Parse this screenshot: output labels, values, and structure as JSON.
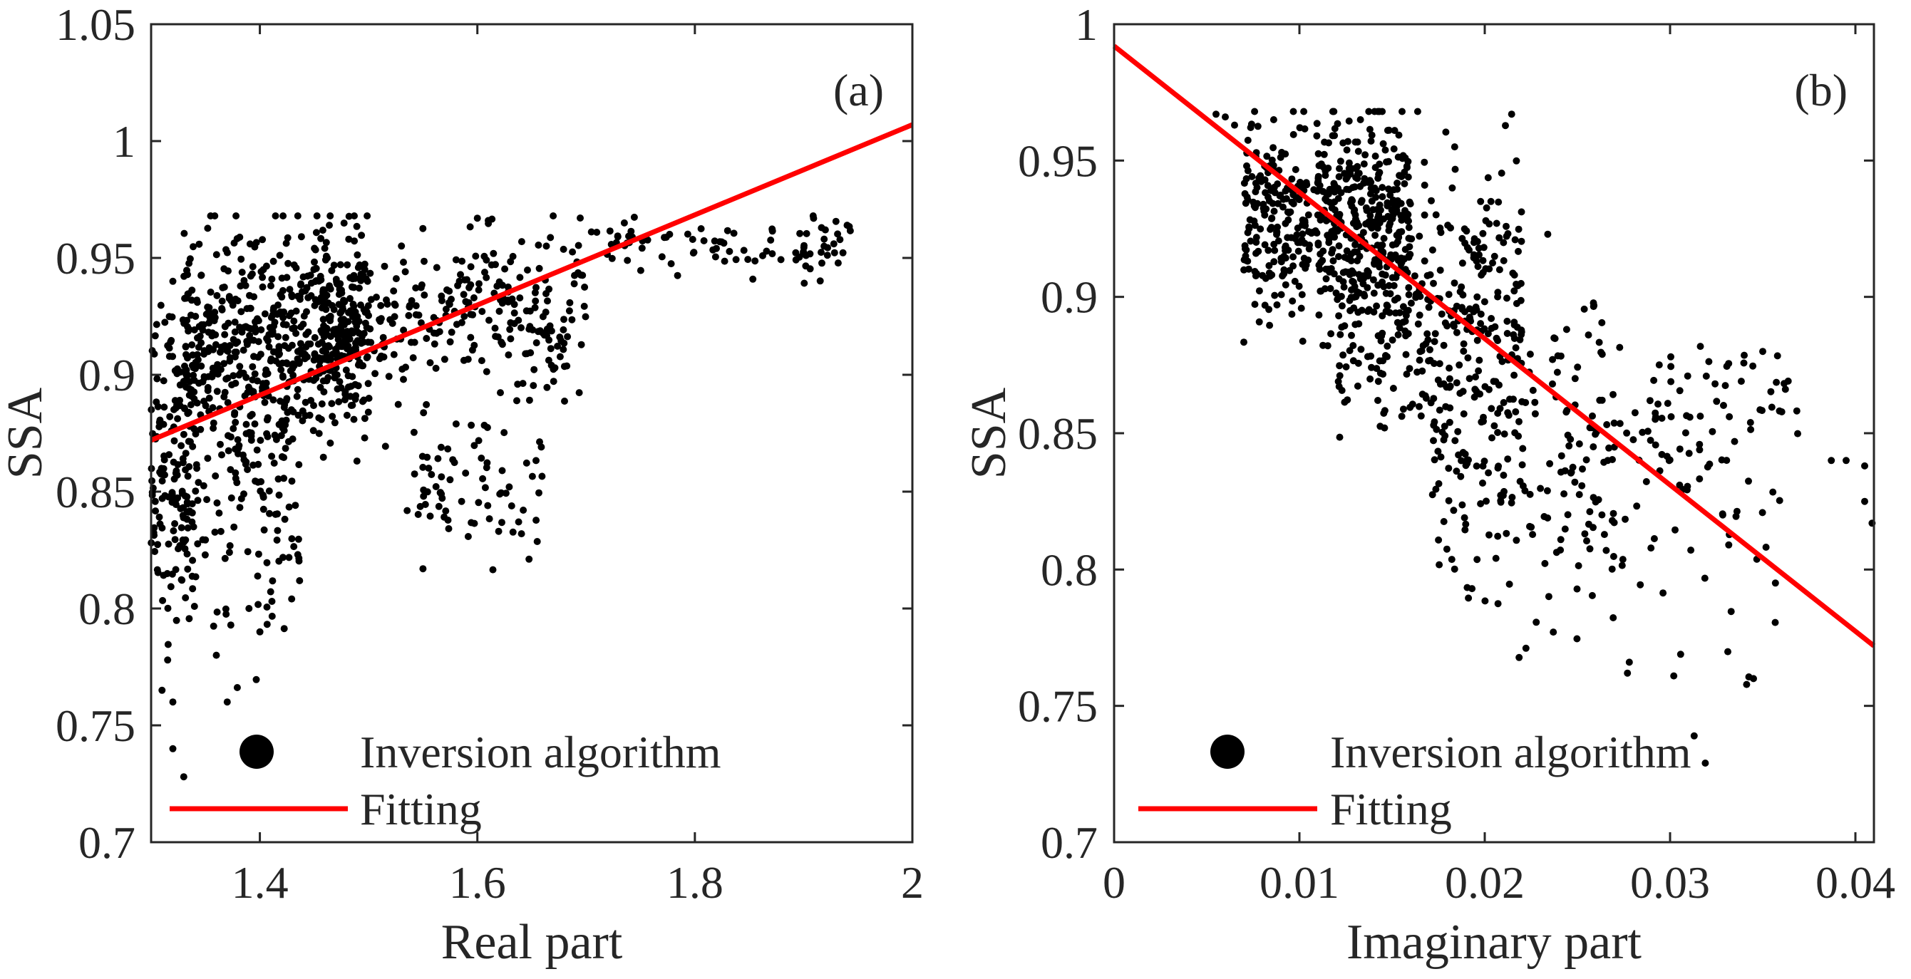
{
  "chart_data": [
    {
      "type": "scatter",
      "panel_label": "(a)",
      "xlabel": "Real part",
      "ylabel": "SSA",
      "xlim": [
        1.3,
        2.0
      ],
      "ylim": [
        0.7,
        1.05
      ],
      "xticks": [
        1.4,
        1.6,
        1.8,
        2.0
      ],
      "xtick_labels": [
        "1.4",
        "1.6",
        "1.8",
        "2"
      ],
      "yticks": [
        0.7,
        0.75,
        0.8,
        0.85,
        0.9,
        0.95,
        1.0,
        1.05
      ],
      "ytick_labels": [
        "0.7",
        "0.75",
        "0.8",
        "0.85",
        "0.9",
        "0.95",
        "1",
        "1.05"
      ],
      "legend_position": "bottom-left",
      "series": [
        {
          "name": "Inversion algorithm",
          "kind": "scatter",
          "color": "#000000",
          "clusters": [
            {
              "count": 560,
              "x_range": [
                1.33,
                1.5
              ],
              "y_center": 0.915,
              "y_spread": 0.022
            },
            {
              "count": 320,
              "x_range": [
                1.45,
                1.7
              ],
              "y_center": 0.925,
              "y_spread": 0.018
            },
            {
              "count": 170,
              "x_range": [
                1.3,
                1.34
              ],
              "y_center": 0.86,
              "y_spread": 0.035
            },
            {
              "count": 130,
              "x_range": [
                1.34,
                1.44
              ],
              "y_center": 0.85,
              "y_spread": 0.03
            },
            {
              "count": 75,
              "x_range": [
                1.53,
                1.66
              ],
              "y_center": 0.85,
              "y_spread": 0.014
            },
            {
              "count": 90,
              "x_range": [
                1.7,
                1.95
              ],
              "y_center": 0.955,
              "y_spread": 0.007
            }
          ],
          "points": [
            {
              "x": 1.31,
              "y": 0.765
            },
            {
              "x": 1.32,
              "y": 0.76
            },
            {
              "x": 1.32,
              "y": 0.74
            },
            {
              "x": 1.33,
              "y": 0.728
            },
            {
              "x": 1.36,
              "y": 0.78
            },
            {
              "x": 1.37,
              "y": 0.76
            },
            {
              "x": 1.39,
              "y": 0.8
            },
            {
              "x": 1.4,
              "y": 0.79
            },
            {
              "x": 1.55,
              "y": 0.817
            },
            {
              "x": 1.32,
              "y": 0.94
            },
            {
              "x": 1.6,
              "y": 0.967
            },
            {
              "x": 1.61,
              "y": 0.966
            },
            {
              "x": 1.92,
              "y": 0.962
            },
            {
              "x": 1.94,
              "y": 0.964
            }
          ]
        },
        {
          "name": "Fitting",
          "kind": "line",
          "color": "#ff0000",
          "x": [
            1.3,
            2.0
          ],
          "y": [
            0.872,
            1.007
          ]
        }
      ]
    },
    {
      "type": "scatter",
      "panel_label": "(b)",
      "xlabel": "Imaginary part",
      "ylabel": "SSA",
      "xlim": [
        0,
        0.041
      ],
      "ylim": [
        0.7,
        1.0
      ],
      "xticks": [
        0,
        0.01,
        0.02,
        0.03,
        0.04
      ],
      "xtick_labels": [
        "0",
        "0.01",
        "0.02",
        "0.03",
        "0.04"
      ],
      "yticks": [
        0.7,
        0.75,
        0.8,
        0.85,
        0.9,
        0.95,
        1.0
      ],
      "ytick_labels": [
        "0.7",
        "0.75",
        "0.8",
        "0.85",
        "0.9",
        "0.95",
        "1"
      ],
      "legend_position": "bottom-left",
      "series": [
        {
          "name": "Inversion algorithm",
          "kind": "scatter",
          "color": "#000000",
          "clusters": [
            {
              "count": 520,
              "x_range": [
                0.007,
                0.016
              ],
              "y_center": 0.93,
              "y_spread": 0.018
            },
            {
              "count": 360,
              "x_range": [
                0.012,
                0.022
              ],
              "y_center": 0.9,
              "y_spread": 0.025
            },
            {
              "count": 190,
              "x_range": [
                0.017,
                0.027
              ],
              "y_center": 0.84,
              "y_spread": 0.028
            },
            {
              "count": 70,
              "x_range": [
                0.024,
                0.036
              ],
              "y_center": 0.825,
              "y_spread": 0.03
            },
            {
              "count": 55,
              "x_range": [
                0.028,
                0.037
              ],
              "y_center": 0.86,
              "y_spread": 0.012
            }
          ],
          "points": [
            {
              "x": 0.0055,
              "y": 0.967
            },
            {
              "x": 0.006,
              "y": 0.966
            },
            {
              "x": 0.0065,
              "y": 0.963
            },
            {
              "x": 0.0278,
              "y": 0.766
            },
            {
              "x": 0.0277,
              "y": 0.762
            },
            {
              "x": 0.0302,
              "y": 0.761
            },
            {
              "x": 0.0313,
              "y": 0.739
            },
            {
              "x": 0.0319,
              "y": 0.729
            },
            {
              "x": 0.0345,
              "y": 0.76
            },
            {
              "x": 0.0395,
              "y": 0.84
            },
            {
              "x": 0.0405,
              "y": 0.838
            },
            {
              "x": 0.0405,
              "y": 0.825
            },
            {
              "x": 0.0409,
              "y": 0.817
            },
            {
              "x": 0.0387,
              "y": 0.84
            },
            {
              "x": 0.035,
              "y": 0.88
            },
            {
              "x": 0.0234,
              "y": 0.923
            }
          ]
        },
        {
          "name": "Fitting",
          "kind": "line",
          "color": "#ff0000",
          "x": [
            0,
            0.041
          ],
          "y": [
            0.992,
            0.772
          ]
        }
      ]
    }
  ]
}
